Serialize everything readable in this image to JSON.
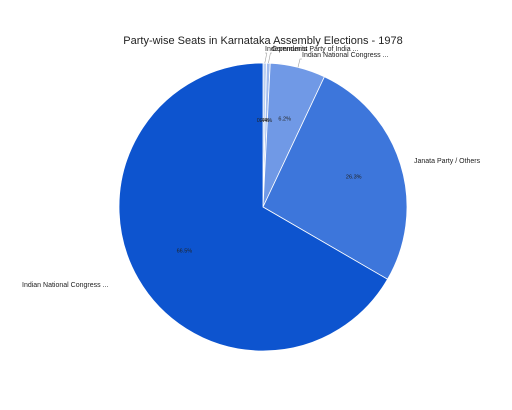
{
  "chart_data": {
    "type": "pie",
    "title": "Party-wise Seats in Karnataka Assembly Elections - 1978",
    "slices": [
      {
        "label": "Independents",
        "value": 0.4,
        "value_label": "0.4%",
        "color": "#bcd0f2"
      },
      {
        "label": "Communist Party of India ...",
        "value": 0.4,
        "value_label": "0.4%",
        "color": "#a2bcee"
      },
      {
        "label": "Indian National Congress ...",
        "value": 6.2,
        "value_label": "6.2%",
        "color": "#7099e6"
      },
      {
        "label": "Janata Party / Others",
        "value": 26.3,
        "value_label": "26.3%",
        "color": "#3d76db"
      },
      {
        "label": "Indian National Congress ...",
        "value": 66.5,
        "value_label": "66.5%",
        "color": "#0d54cf"
      }
    ],
    "legend": "none"
  }
}
